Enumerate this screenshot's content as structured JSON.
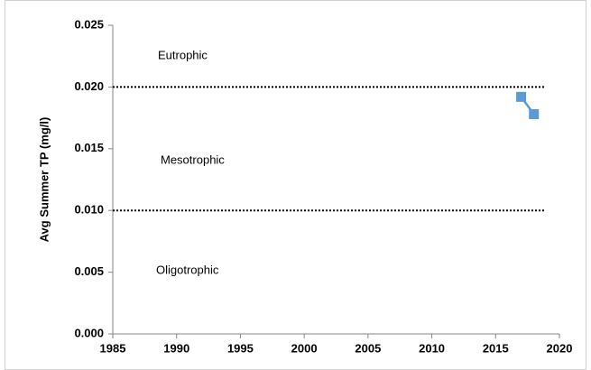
{
  "chart_data": {
    "type": "line",
    "y_label": "Avg Summer TP (mg/l)",
    "x": [
      2017,
      2018
    ],
    "series": [
      {
        "color": "#5b9bd5",
        "values": [
          0.0192,
          0.0178
        ]
      }
    ],
    "xlim": [
      1985,
      2020
    ],
    "xticks": [
      1985,
      1990,
      1995,
      2000,
      2005,
      2010,
      2015,
      2020
    ],
    "ylim": [
      0,
      0.025
    ],
    "yticks": [
      {
        "value": 0,
        "label": "0.000"
      },
      0.005,
      {
        "value": 0.01,
        "label": "0.010"
      },
      0.015,
      {
        "value": 0.02,
        "label": "0.020"
      },
      0.025
    ],
    "reference_lines": [
      0.02,
      0.01
    ],
    "annotations": [
      "Eutrophic",
      "Mesotrophic",
      "Oligotrophic"
    ]
  }
}
